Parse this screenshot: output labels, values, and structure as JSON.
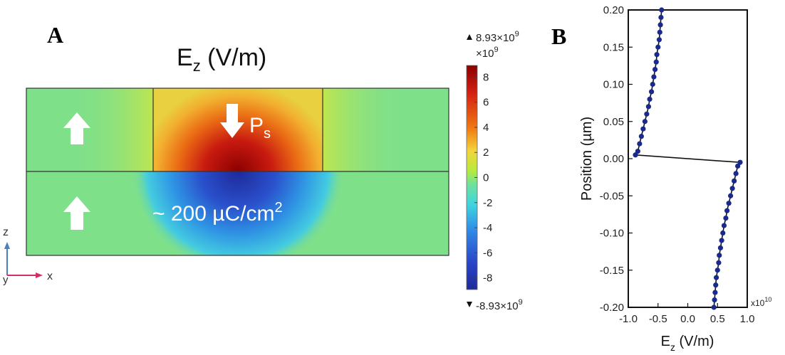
{
  "panel_a": {
    "label": "A",
    "title_main": "E",
    "title_sub": "z",
    "title_units": " (V/m)",
    "ps_main": "P",
    "ps_sub": "s",
    "charge_label": "~ 200 µC/cm",
    "charge_sup": "2",
    "axis_z": "z",
    "axis_x": "x",
    "axis_y": "y",
    "colorbar": {
      "max_label": "8.93×10",
      "max_exp": "9",
      "min_label": "-8.93×10",
      "min_exp": "9",
      "multiplier": "×10",
      "multiplier_exp": "9",
      "ticks": [
        "8",
        "6",
        "4",
        "2",
        "0",
        "-2",
        "-4",
        "-6",
        "-8"
      ],
      "range": [
        -8.93,
        8.93
      ]
    },
    "colors": {
      "positive_max": "#8b0000",
      "zero": "#7fe08a",
      "negative_max": "#1e2a9a",
      "arrow": "#ffffff",
      "axis_z": "#4a7fc0",
      "axis_x": "#d0306a"
    }
  },
  "panel_b": {
    "label": "B",
    "multiplier": "x10",
    "multiplier_exp": "10"
  },
  "chart_data": {
    "type": "line",
    "title": "",
    "xlabel_main": "E",
    "xlabel_sub": "z",
    "xlabel_units": " (V/m)",
    "ylabel": "Position (µm)",
    "xlim": [
      -1.0,
      1.0
    ],
    "ylim": [
      -0.2,
      0.2
    ],
    "xticks": [
      "-1.0",
      "-0.5",
      "0.0",
      "0.5",
      "1.0"
    ],
    "yticks": [
      "0.20",
      "0.15",
      "0.10",
      "0.05",
      "0.00",
      "-0.05",
      "-0.10",
      "-0.15",
      "-0.20"
    ],
    "x_multiplier": "x10^10",
    "series_color": "#1a2a8c",
    "series": [
      {
        "points": [
          [
            -0.44,
            0.2
          ],
          [
            -0.45,
            0.19
          ],
          [
            -0.46,
            0.18
          ],
          [
            -0.47,
            0.17
          ],
          [
            -0.48,
            0.16
          ],
          [
            -0.5,
            0.15
          ],
          [
            -0.52,
            0.14
          ],
          [
            -0.53,
            0.13
          ],
          [
            -0.55,
            0.12
          ],
          [
            -0.57,
            0.11
          ],
          [
            -0.59,
            0.1
          ],
          [
            -0.61,
            0.09
          ],
          [
            -0.64,
            0.08
          ],
          [
            -0.66,
            0.07
          ],
          [
            -0.69,
            0.06
          ],
          [
            -0.72,
            0.05
          ],
          [
            -0.75,
            0.04
          ],
          [
            -0.78,
            0.03
          ],
          [
            -0.81,
            0.02
          ],
          [
            -0.84,
            0.01
          ],
          [
            -0.88,
            0.005
          ],
          [
            0.88,
            -0.005
          ],
          [
            0.84,
            -0.01
          ],
          [
            0.81,
            -0.02
          ],
          [
            0.78,
            -0.03
          ],
          [
            0.75,
            -0.04
          ],
          [
            0.72,
            -0.05
          ],
          [
            0.69,
            -0.06
          ],
          [
            0.66,
            -0.07
          ],
          [
            0.64,
            -0.08
          ],
          [
            0.61,
            -0.09
          ],
          [
            0.59,
            -0.1
          ],
          [
            0.57,
            -0.11
          ],
          [
            0.55,
            -0.12
          ],
          [
            0.53,
            -0.13
          ],
          [
            0.52,
            -0.14
          ],
          [
            0.5,
            -0.15
          ],
          [
            0.48,
            -0.16
          ],
          [
            0.47,
            -0.17
          ],
          [
            0.46,
            -0.18
          ],
          [
            0.45,
            -0.19
          ],
          [
            0.44,
            -0.2
          ]
        ]
      }
    ]
  }
}
